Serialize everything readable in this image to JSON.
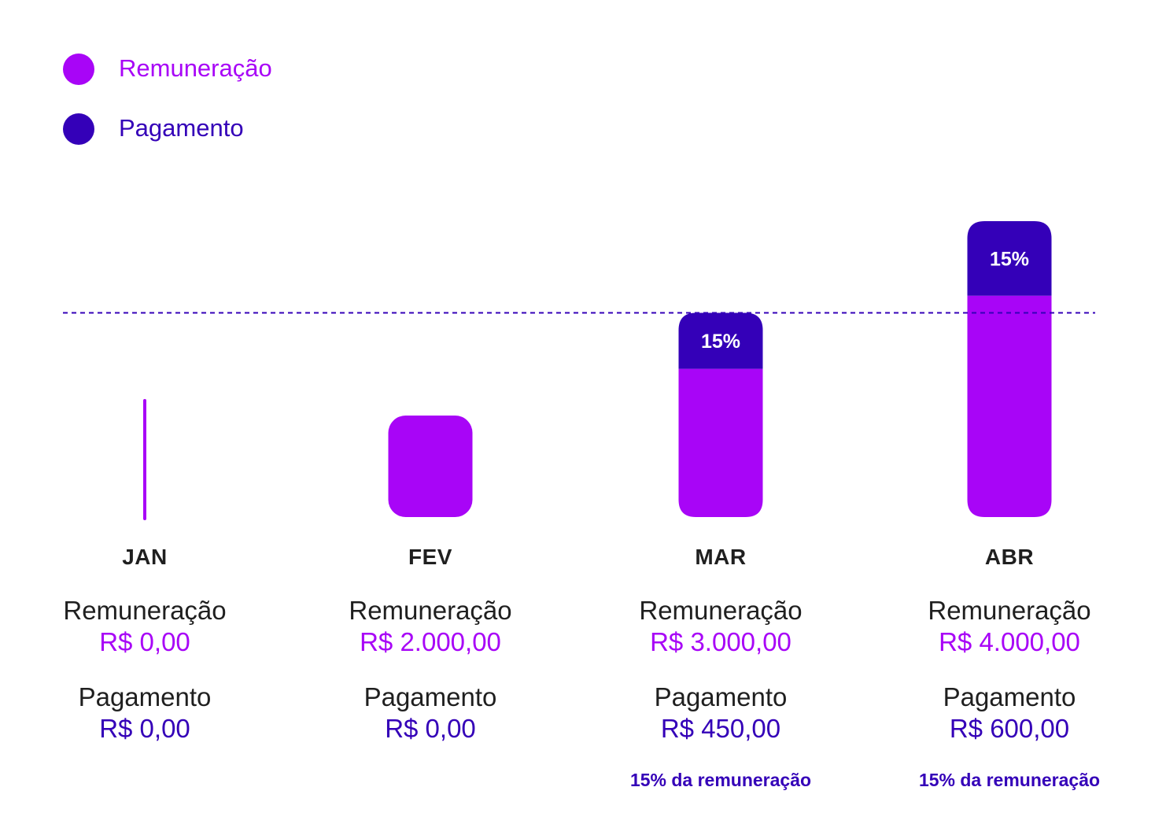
{
  "colors": {
    "remuneracao": "#a805f7",
    "pagamento": "#3400b8",
    "text": "#1f1f1f"
  },
  "legend": [
    {
      "label": "Remuneração",
      "color": "#a805f7"
    },
    {
      "label": "Pagamento",
      "color": "#3400b8"
    }
  ],
  "months": [
    {
      "name": "JAN",
      "remun_label": "Remuneração",
      "remun_value": "R$ 0,00",
      "pag_label": "Pagamento",
      "pag_value": "R$ 0,00",
      "note": ""
    },
    {
      "name": "FEV",
      "remun_label": "Remuneração",
      "remun_value": "R$ 2.000,00",
      "pag_label": "Pagamento",
      "pag_value": "R$ 0,00",
      "note": ""
    },
    {
      "name": "MAR",
      "remun_label": "Remuneração",
      "remun_value": "R$ 3.000,00",
      "pag_label": "Pagamento",
      "pag_value": "R$ 450,00",
      "note": "15% da remuneração"
    },
    {
      "name": "ABR",
      "remun_label": "Remuneração",
      "remun_value": "R$ 4.000,00",
      "pag_label": "Pagamento",
      "pag_value": "R$ 600,00",
      "note": "15% da remuneração"
    }
  ],
  "chart_data": {
    "type": "bar",
    "stacked": true,
    "categories": [
      "JAN",
      "FEV",
      "MAR",
      "ABR"
    ],
    "series": [
      {
        "name": "Remuneração",
        "values": [
          0,
          2000,
          3000,
          4000
        ],
        "color": "#a805f7"
      },
      {
        "name": "Pagamento",
        "values": [
          0,
          0,
          450,
          600
        ],
        "color": "#3400b8"
      }
    ],
    "segment_labels": [
      "",
      "",
      "15%",
      "15%"
    ],
    "reference_line": {
      "style": "dashed",
      "color": "#3400b8"
    },
    "legend_position": "top-left",
    "grid": false
  }
}
